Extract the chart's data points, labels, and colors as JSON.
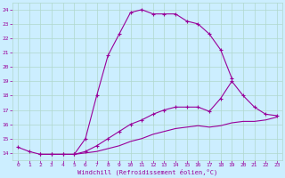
{
  "xlabel": "Windchill (Refroidissement éolien,°C)",
  "x_hours": [
    0,
    1,
    2,
    3,
    4,
    5,
    6,
    7,
    8,
    9,
    10,
    11,
    12,
    13,
    14,
    15,
    16,
    17,
    18,
    19,
    20,
    21,
    22,
    23
  ],
  "line1": [
    14.4,
    14.1,
    13.9,
    13.9,
    13.9,
    13.9,
    15.0,
    18.0,
    20.8,
    22.3,
    23.8,
    24.0,
    23.7,
    23.7,
    23.7,
    23.2,
    23.0,
    22.3,
    21.2,
    19.2,
    null,
    null,
    null,
    null
  ],
  "line1_has_markers": true,
  "line2": [
    null,
    null,
    13.9,
    13.9,
    13.9,
    13.9,
    14.1,
    14.5,
    15.0,
    15.5,
    16.0,
    16.3,
    16.7,
    17.0,
    17.2,
    17.2,
    17.2,
    16.9,
    17.8,
    19.0,
    18.0,
    17.2,
    16.7,
    16.6
  ],
  "line2_has_markers": true,
  "line3": [
    null,
    null,
    13.9,
    13.9,
    13.9,
    13.9,
    14.0,
    14.1,
    14.3,
    14.5,
    14.8,
    15.0,
    15.3,
    15.5,
    15.7,
    15.8,
    15.9,
    15.8,
    15.9,
    16.1,
    16.2,
    16.2,
    16.3,
    16.5
  ],
  "line3_has_markers": false,
  "ylim": [
    13.5,
    24.5
  ],
  "yticks": [
    14,
    15,
    16,
    17,
    18,
    19,
    20,
    21,
    22,
    23,
    24
  ],
  "xticks": [
    0,
    1,
    2,
    3,
    4,
    5,
    6,
    7,
    8,
    9,
    10,
    11,
    12,
    13,
    14,
    15,
    16,
    17,
    18,
    19,
    20,
    21,
    22,
    23
  ],
  "line_color": "#990099",
  "bg_color": "#cceeff",
  "grid_color": "#b0d8cc",
  "markersize": 3.5,
  "linewidth": 0.8
}
